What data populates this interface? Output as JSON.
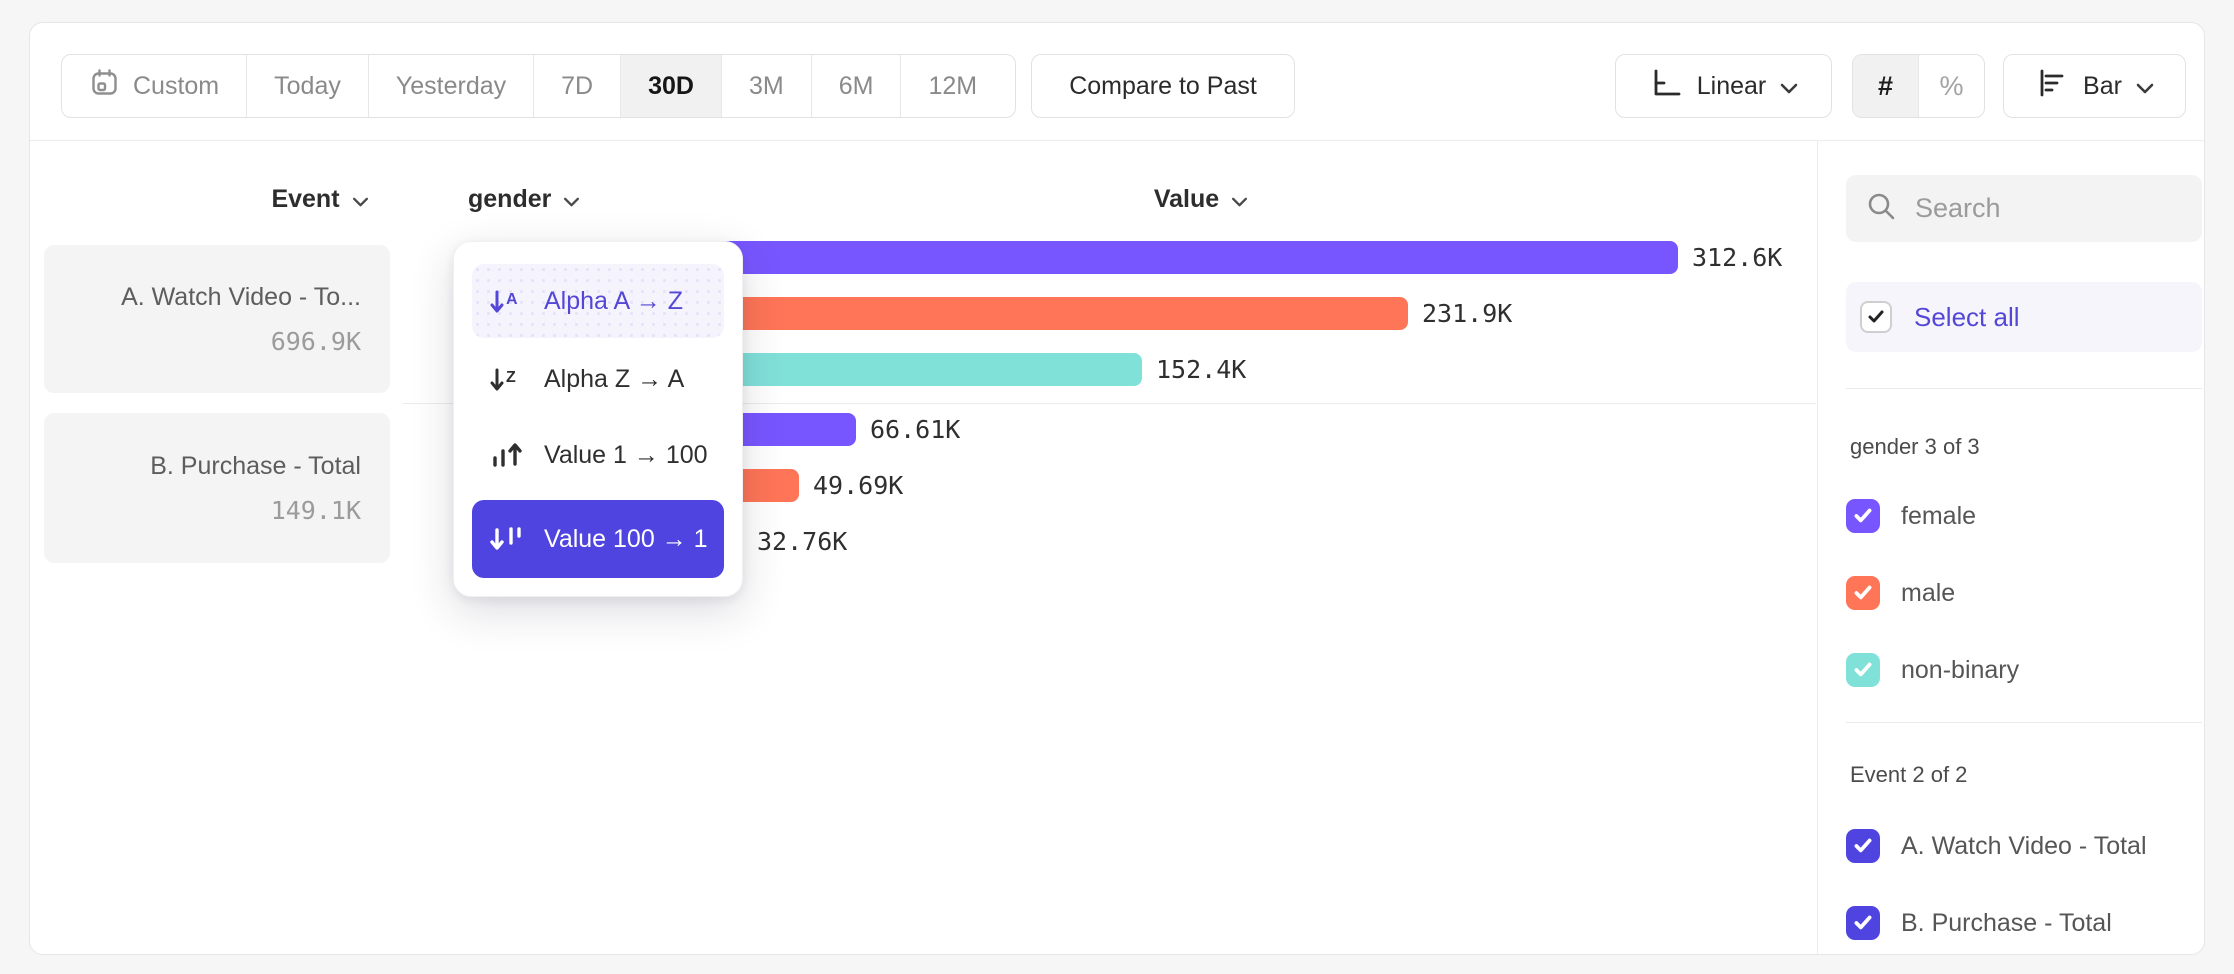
{
  "toolbar": {
    "date_ranges": [
      {
        "label": "Custom",
        "active": false
      },
      {
        "label": "Today",
        "active": false
      },
      {
        "label": "Yesterday",
        "active": false
      },
      {
        "label": "7D",
        "active": false
      },
      {
        "label": "30D",
        "active": true
      },
      {
        "label": "3M",
        "active": false
      },
      {
        "label": "6M",
        "active": false
      },
      {
        "label": "12M",
        "active": false
      }
    ],
    "compare_label": "Compare to Past",
    "scale_label": "Linear",
    "format_number_label": "#",
    "format_percent_label": "%",
    "chart_type_label": "Bar"
  },
  "columns": {
    "event": "Event",
    "breakdown": "gender",
    "value": "Value"
  },
  "event_cards": [
    {
      "title": "A. Watch Video - To...",
      "value": "696.9K"
    },
    {
      "title": "B. Purchase - Total",
      "value": "149.1K"
    }
  ],
  "sort_menu": {
    "items": [
      {
        "label": "Alpha A → Z",
        "icon": "sort-alpha-asc-icon",
        "state": "highlighted"
      },
      {
        "label": "Alpha Z → A",
        "icon": "sort-alpha-desc-icon",
        "state": "normal"
      },
      {
        "label": "Value 1 → 100",
        "icon": "sort-value-asc-icon",
        "state": "normal"
      },
      {
        "label": "Value 100 → 1",
        "icon": "sort-value-desc-icon",
        "state": "selected"
      }
    ]
  },
  "chart_data": {
    "type": "bar",
    "orientation": "horizontal",
    "value_axis_label": "Value",
    "unit": "K",
    "legend_position": "right-sidebar",
    "grid": false,
    "groups": [
      {
        "event": "A. Watch Video - Total",
        "bars": [
          {
            "segment": "female",
            "value": 312.6,
            "label": "312.6K",
            "color": "#7856ff"
          },
          {
            "segment": "male",
            "value": 231.9,
            "label": "231.9K",
            "color": "#ff7557"
          },
          {
            "segment": "non-binary",
            "value": 152.4,
            "label": "152.4K",
            "color": "#80e1d9"
          }
        ]
      },
      {
        "event": "B. Purchase - Total",
        "bars": [
          {
            "segment": "female",
            "value": 66.61,
            "label": "66.61K",
            "color": "#7856ff"
          },
          {
            "segment": "male",
            "value": 49.69,
            "label": "49.69K",
            "color": "#ff7557"
          },
          {
            "segment": "non-binary",
            "value": 32.76,
            "label": "32.76K",
            "color": "#80e1d9"
          }
        ]
      }
    ]
  },
  "sidebar": {
    "search_placeholder": "Search",
    "select_all_label": "Select all",
    "gender_section": {
      "header": "gender 3 of 3",
      "items": [
        {
          "label": "female",
          "checked": true,
          "color": "#7856ff"
        },
        {
          "label": "male",
          "checked": true,
          "color": "#ff7557"
        },
        {
          "label": "non-binary",
          "checked": true,
          "color": "#80e1d9"
        }
      ]
    },
    "event_section": {
      "header": "Event 2 of 2",
      "items": [
        {
          "label": "A. Watch Video - Total",
          "checked": true,
          "color": "#4f44e0"
        },
        {
          "label": "B. Purchase - Total",
          "checked": true,
          "color": "#4f44e0"
        }
      ]
    }
  },
  "colors": {
    "accent_purple": "#7856ff",
    "accent_coral": "#ff7557",
    "accent_teal": "#80e1d9",
    "selected_indigo": "#4f44e0",
    "menu_highlight_bg": "#f5f4fc",
    "menu_highlight_text": "#5447d6",
    "card_bg": "#f4f4f4",
    "page_bg": "#f6f6f6"
  }
}
